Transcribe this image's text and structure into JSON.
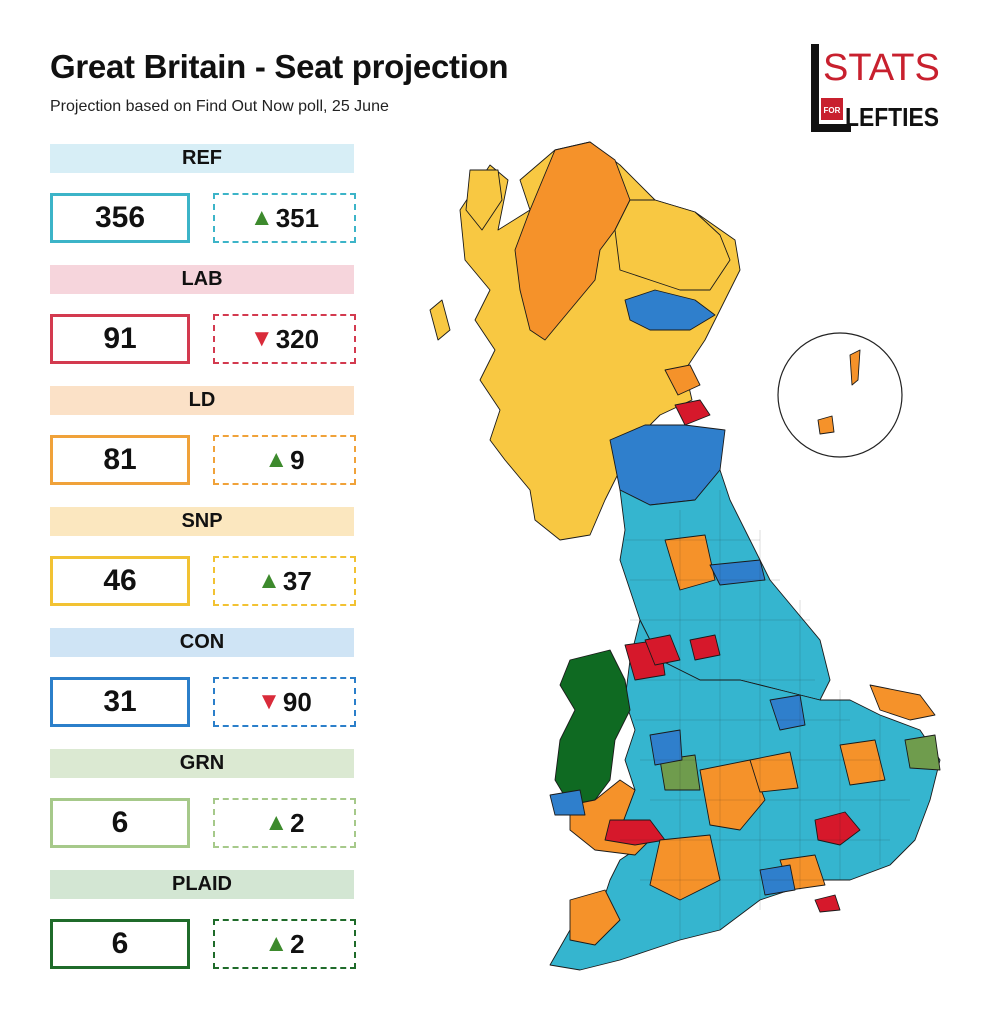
{
  "header": {
    "title": "Great Britain - Seat projection",
    "subtitle": "Projection based on Find Out Now poll, 25 June"
  },
  "logo": {
    "text_top": "STATS",
    "text_for": "FOR",
    "text_bottom": "LEFTIES"
  },
  "parties": [
    {
      "name": "REF",
      "seats": "356",
      "direction": "up",
      "change": "351",
      "band_color": "#d7eef6",
      "border_color": "#3cb4c8",
      "dash_color": "#3cb4c8"
    },
    {
      "name": "LAB",
      "seats": "91",
      "direction": "down",
      "change": "320",
      "band_color": "#f6d5dc",
      "border_color": "#d33a4f",
      "dash_color": "#d33a4f"
    },
    {
      "name": "LD",
      "seats": "81",
      "direction": "up",
      "change": "9",
      "band_color": "#fbe1c7",
      "border_color": "#f0a23a",
      "dash_color": "#f0a23a"
    },
    {
      "name": "SNP",
      "seats": "46",
      "direction": "up",
      "change": "37",
      "band_color": "#fbe7bf",
      "border_color": "#f2c233",
      "dash_color": "#f2c233"
    },
    {
      "name": "CON",
      "seats": "31",
      "direction": "down",
      "change": "90",
      "band_color": "#cfe4f5",
      "border_color": "#2b7fca",
      "dash_color": "#2b7fca"
    },
    {
      "name": "GRN",
      "seats": "6",
      "direction": "up",
      "change": "2",
      "band_color": "#dbe9d2",
      "border_color": "#a6c98a",
      "dash_color": "#a6c98a"
    },
    {
      "name": "PLAID",
      "seats": "6",
      "direction": "up",
      "change": "2",
      "band_color": "#d3e6d3",
      "border_color": "#1f6b2a",
      "dash_color": "#1f6b2a"
    }
  ],
  "map_colors": {
    "ref": "#35b5cf",
    "lab": "#d6182b",
    "ld": "#f5922a",
    "snp": "#f8c842",
    "con": "#2f7fcc",
    "grn": "#6f9c4d",
    "plaid": "#0f6a22",
    "outline": "#1a1a1a"
  }
}
